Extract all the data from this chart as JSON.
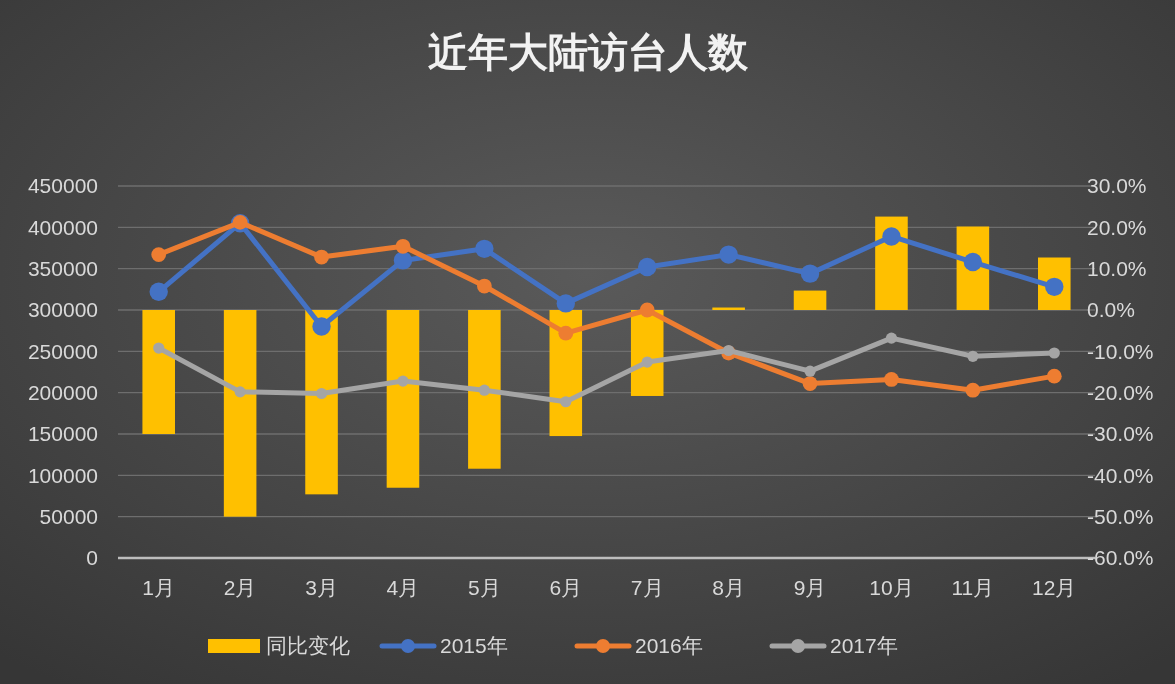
{
  "chart_data": {
    "type": "line",
    "title": "近年大陆访台人数",
    "categories": [
      "1月",
      "2月",
      "3月",
      "4月",
      "5月",
      "6月",
      "7月",
      "8月",
      "9月",
      "10月",
      "11月",
      "12月"
    ],
    "series": [
      {
        "name": "同比变化",
        "type": "bar",
        "axis": "y2",
        "color": "#ffc000",
        "values": [
          -30,
          -50,
          -44.6,
          -43,
          -38.4,
          -30.5,
          -20.8,
          0.6,
          4.7,
          22.6,
          20.2,
          12.7
        ]
      },
      {
        "name": "2015年",
        "color": "#4472c4",
        "values": [
          322000,
          405000,
          280000,
          360000,
          374000,
          308000,
          352000,
          367000,
          344000,
          389000,
          358000,
          328000
        ]
      },
      {
        "name": "2016年",
        "color": "#ed7d31",
        "values": [
          367000,
          406000,
          364000,
          377000,
          329000,
          272000,
          300000,
          248000,
          211000,
          216000,
          203000,
          220000
        ]
      },
      {
        "name": "2017年",
        "color": "#a5a5a5",
        "values": [
          254000,
          201000,
          199000,
          214000,
          203000,
          189000,
          237000,
          251000,
          226000,
          266000,
          244000,
          248000
        ]
      }
    ],
    "ylim": [
      0,
      450000
    ],
    "yticks": [
      0,
      50000,
      100000,
      150000,
      200000,
      250000,
      300000,
      350000,
      400000,
      450000
    ],
    "y2lim": [
      -60,
      30
    ],
    "y2ticks": [
      {
        "value": -60,
        "label": "-60.0%"
      },
      {
        "value": -50,
        "label": "-50.0%"
      },
      {
        "value": -40,
        "label": "-40.0%"
      },
      {
        "value": -30,
        "label": "-30.0%"
      },
      {
        "value": -20,
        "label": "-20.0%"
      },
      {
        "value": -10,
        "label": "-10.0%"
      },
      {
        "value": 0,
        "label": "0.0%"
      },
      {
        "value": 10,
        "label": "10.0%"
      },
      {
        "value": 20,
        "label": "20.0%"
      },
      {
        "value": 30,
        "label": "30.0%"
      }
    ],
    "grid": "y",
    "legend": "bottom",
    "marker": "circle",
    "line_style": "solid"
  }
}
